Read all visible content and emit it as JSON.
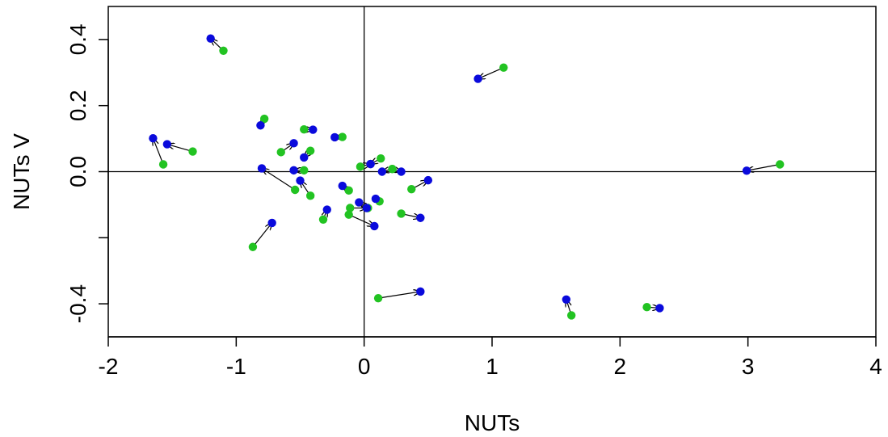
{
  "chart_data": {
    "type": "scatter",
    "title": "",
    "xlabel": "NUTs",
    "ylabel": "NUTs V",
    "xlim": [
      -2,
      4
    ],
    "ylim": [
      -0.5,
      0.5
    ],
    "x_ticks": [
      -2,
      -1,
      0,
      1,
      2,
      3,
      4
    ],
    "x_tick_labels": [
      "-2",
      "-1",
      "0",
      "1",
      "2",
      "3",
      "4"
    ],
    "y_ticks": [
      0.4,
      0.2,
      0.0,
      -0.2,
      -0.4
    ],
    "y_tick_labels": [
      "0.4",
      "0.2",
      "0.0",
      "",
      "-0.4"
    ],
    "reference_lines": {
      "x": 0,
      "y": 0
    },
    "grid": false,
    "legend": "none",
    "colors": {
      "start": "#22c322",
      "end": "#0a0adc",
      "arrow": "#000000"
    },
    "arrows": [
      {
        "from": [
          -1.1,
          0.366
        ],
        "to": [
          -1.2,
          0.403
        ]
      },
      {
        "from": [
          1.09,
          0.315
        ],
        "to": [
          0.89,
          0.281
        ]
      },
      {
        "from": [
          -0.78,
          0.16
        ],
        "to": [
          -0.81,
          0.14
        ]
      },
      {
        "from": [
          -0.47,
          0.128
        ],
        "to": [
          -0.4,
          0.127
        ]
      },
      {
        "from": [
          -0.17,
          0.105
        ],
        "to": [
          -0.23,
          0.104
        ]
      },
      {
        "from": [
          -1.57,
          0.022
        ],
        "to": [
          -1.65,
          0.101
        ]
      },
      {
        "from": [
          -1.34,
          0.061
        ],
        "to": [
          -1.54,
          0.083
        ]
      },
      {
        "from": [
          -0.65,
          0.059
        ],
        "to": [
          -0.55,
          0.086
        ]
      },
      {
        "from": [
          -0.42,
          0.063
        ],
        "to": [
          -0.47,
          0.043
        ]
      },
      {
        "from": [
          0.13,
          0.04
        ],
        "to": [
          0.05,
          0.023
        ]
      },
      {
        "from": [
          -0.03,
          0.015
        ],
        "to": [
          0.05,
          0.023
        ]
      },
      {
        "from": [
          0.22,
          0.008
        ],
        "to": [
          0.14,
          0.0
        ]
      },
      {
        "from": [
          0.22,
          0.008
        ],
        "to": [
          0.29,
          0.0
        ]
      },
      {
        "from": [
          -0.47,
          0.004
        ],
        "to": [
          -0.55,
          0.004
        ]
      },
      {
        "from": [
          3.25,
          0.022
        ],
        "to": [
          2.99,
          0.003
        ]
      },
      {
        "from": [
          -0.54,
          -0.055
        ],
        "to": [
          -0.8,
          0.01
        ]
      },
      {
        "from": [
          -0.42,
          -0.073
        ],
        "to": [
          -0.5,
          -0.027
        ]
      },
      {
        "from": [
          -0.12,
          -0.057
        ],
        "to": [
          -0.17,
          -0.043
        ]
      },
      {
        "from": [
          0.37,
          -0.053
        ],
        "to": [
          0.5,
          -0.026
        ]
      },
      {
        "from": [
          0.12,
          -0.09
        ],
        "to": [
          0.09,
          -0.082
        ]
      },
      {
        "from": [
          0.03,
          -0.11
        ],
        "to": [
          -0.04,
          -0.093
        ]
      },
      {
        "from": [
          -0.11,
          -0.11
        ],
        "to": [
          0.02,
          -0.11
        ]
      },
      {
        "from": [
          -0.12,
          -0.13
        ],
        "to": [
          0.08,
          -0.165
        ]
      },
      {
        "from": [
          0.29,
          -0.127
        ],
        "to": [
          0.44,
          -0.14
        ]
      },
      {
        "from": [
          -0.32,
          -0.145
        ],
        "to": [
          -0.29,
          -0.115
        ]
      },
      {
        "from": [
          -0.87,
          -0.228
        ],
        "to": [
          -0.72,
          -0.155
        ]
      },
      {
        "from": [
          0.11,
          -0.383
        ],
        "to": [
          0.44,
          -0.363
        ]
      },
      {
        "from": [
          1.62,
          -0.435
        ],
        "to": [
          1.58,
          -0.387
        ]
      },
      {
        "from": [
          2.21,
          -0.41
        ],
        "to": [
          2.31,
          -0.413
        ]
      }
    ]
  }
}
